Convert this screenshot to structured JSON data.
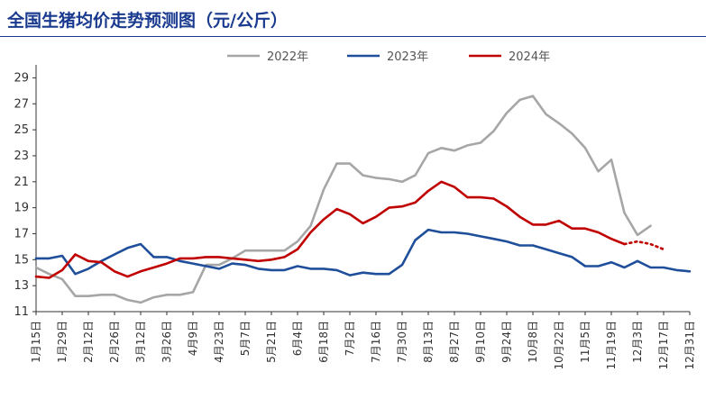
{
  "title": "全国生猪均价走势预测图（元/公斤）",
  "chart_data": {
    "type": "line",
    "ylim": [
      11,
      30
    ],
    "yticks": [
      11,
      13,
      15,
      17,
      19,
      21,
      23,
      25,
      27,
      29
    ],
    "categories": [
      "1月15日",
      "1月29日",
      "2月12日",
      "2月26日",
      "3月12日",
      "3月26日",
      "4月9日",
      "4月23日",
      "5月7日",
      "5月21日",
      "6月4日",
      "6月18日",
      "7月2日",
      "7月16日",
      "7月30日",
      "8月13日",
      "8月27日",
      "9月10日",
      "9月24日",
      "10月8日",
      "10月22日",
      "11月5日",
      "11月19日",
      "12月3日",
      "12月17日",
      "12月31日"
    ],
    "legend_position": "top",
    "series": [
      {
        "name": "2022年",
        "color": "#a6a6a6",
        "x": [
          0,
          0.5,
          1,
          1.5,
          2,
          2.5,
          3,
          3.5,
          4,
          4.5,
          5,
          5.5,
          6,
          6.5,
          7,
          7.5,
          8,
          8.5,
          9,
          9.5,
          10,
          10.5,
          11,
          11.5,
          12,
          12.5,
          13,
          13.5,
          14,
          14.5,
          15,
          15.5,
          16,
          16.5,
          17,
          17.5,
          18,
          18.5,
          19,
          19.5,
          20,
          20.5,
          21,
          21.5,
          22,
          22.5,
          23,
          23.5,
          24,
          24.5
        ],
        "values": [
          14.4,
          13.9,
          13.5,
          12.2,
          12.2,
          12.3,
          12.3,
          11.9,
          11.7,
          12.1,
          12.3,
          12.3,
          12.5,
          14.6,
          14.6,
          15.1,
          15.7,
          15.7,
          15.7,
          15.7,
          16.4,
          17.6,
          20.4,
          22.4,
          22.4,
          21.5,
          21.3,
          21.2,
          21.0,
          21.5,
          23.2,
          23.6,
          23.4,
          23.8,
          24.0,
          24.9,
          26.3,
          27.3,
          27.6,
          26.2,
          25.5,
          24.7,
          23.6,
          21.8,
          22.7,
          18.6,
          16.9,
          17.6,
          null,
          null
        ]
      },
      {
        "name": "2023年",
        "color": "#1f4e9a",
        "x": [
          0,
          0.5,
          1,
          1.5,
          2,
          2.5,
          3,
          3.5,
          4,
          4.5,
          5,
          5.5,
          6,
          6.5,
          7,
          7.5,
          8,
          8.5,
          9,
          9.5,
          10,
          10.5,
          11,
          11.5,
          12,
          12.5,
          13,
          13.5,
          14,
          14.5,
          15,
          15.5,
          16,
          16.5,
          17,
          17.5,
          18,
          18.5,
          19,
          19.5,
          20,
          20.5,
          21,
          21.5,
          22,
          22.5,
          23,
          23.5,
          24,
          24.5,
          25
        ],
        "values": [
          15.1,
          15.1,
          15.3,
          13.9,
          14.3,
          14.9,
          15.4,
          15.9,
          16.2,
          15.2,
          15.2,
          14.9,
          14.7,
          14.5,
          14.3,
          14.7,
          14.6,
          14.3,
          14.2,
          14.2,
          14.5,
          14.3,
          14.3,
          14.2,
          13.8,
          14.0,
          13.9,
          13.9,
          14.6,
          16.5,
          17.3,
          17.1,
          17.1,
          17.0,
          16.8,
          16.6,
          16.4,
          16.1,
          16.1,
          15.8,
          15.5,
          15.2,
          14.5,
          14.5,
          14.8,
          14.4,
          14.9,
          14.4,
          14.4,
          14.2,
          14.1
        ]
      },
      {
        "name": "2024年",
        "color": "#c00000",
        "x": [
          0,
          0.5,
          1,
          1.5,
          2,
          2.5,
          3,
          3.5,
          4,
          4.5,
          5,
          5.5,
          6,
          6.5,
          7,
          7.5,
          8,
          8.5,
          9,
          9.5,
          10,
          10.5,
          11,
          11.5,
          12,
          12.5,
          13,
          13.5,
          14,
          14.5,
          15,
          15.5,
          16,
          16.5,
          17,
          17.5,
          18,
          18.5,
          19,
          19.5,
          20,
          20.5,
          21,
          21.5,
          22,
          22.5
        ],
        "values": [
          13.7,
          13.6,
          14.2,
          15.4,
          14.9,
          14.8,
          14.1,
          13.7,
          14.1,
          14.4,
          14.7,
          15.1,
          15.1,
          15.2,
          15.2,
          15.1,
          15.0,
          14.9,
          15.0,
          15.2,
          15.8,
          17.1,
          18.1,
          18.9,
          18.5,
          17.8,
          18.3,
          19.0,
          19.1,
          19.4,
          20.3,
          21.0,
          20.6,
          19.8,
          19.8,
          19.7,
          19.1,
          18.3,
          17.7,
          17.7,
          18.0,
          17.4,
          17.4,
          17.1,
          16.6,
          16.2
        ],
        "forecast_x": [
          22.5,
          23,
          23.5,
          24
        ],
        "forecast_values": [
          16.2,
          16.4,
          16.2,
          15.8
        ]
      }
    ]
  }
}
